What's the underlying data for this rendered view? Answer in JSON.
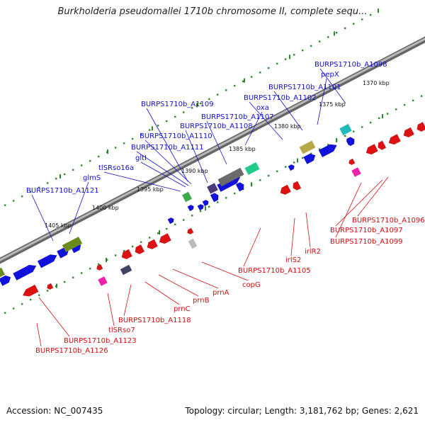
{
  "title": "Burkholderia pseudomallei 1710b chromosome II, complete sequ...",
  "footer": {
    "accession_label": "Accession: NC_007435",
    "stats_label": "Topology: circular; Length: 3,181,762 bp; Genes: 2,621"
  },
  "colors": {
    "forward": "#1111dd",
    "reverse": "#dd1111",
    "label_forward": "#1010c8",
    "label_reverse": "#d01010",
    "ruler": "#2a8a2a",
    "backbone": "#7a7a7a"
  },
  "ticks": [
    {
      "text": "1370 kbp"
    },
    {
      "text": "1375 kbp"
    },
    {
      "text": "1380 kbp"
    },
    {
      "text": "1385 kbp"
    },
    {
      "text": "1390 kbp"
    },
    {
      "text": "1395 kbp"
    },
    {
      "text": "1400 kbp"
    },
    {
      "text": "1405 kbp"
    }
  ],
  "forward_labels": [
    {
      "text": "BURPS1710b_A1098"
    },
    {
      "text": "pepX"
    },
    {
      "text": "BURPS1710b_A1101"
    },
    {
      "text": "BURPS1710b_A1102"
    },
    {
      "text": "oxa"
    },
    {
      "text": "BURPS1710b_A1107"
    },
    {
      "text": "BURPS1710b_A1108"
    },
    {
      "text": "BURPS1710b_A1109"
    },
    {
      "text": "BURPS1710b_A1110"
    },
    {
      "text": "BURPS1710b_A1111"
    },
    {
      "text": "gltI"
    },
    {
      "text": "tlSRso16a"
    },
    {
      "text": "glmS"
    },
    {
      "text": "BURPS1710b_A1121"
    }
  ],
  "reverse_labels": [
    {
      "text": "BURPS1710b_A1096"
    },
    {
      "text": "BURPS1710b_A1097"
    },
    {
      "text": "BURPS1710b_A1099"
    },
    {
      "text": "irlR2"
    },
    {
      "text": "irlS2"
    },
    {
      "text": "BURPS1710b_A1105"
    },
    {
      "text": "copG"
    },
    {
      "text": "prnA"
    },
    {
      "text": "prnB"
    },
    {
      "text": "prnC"
    },
    {
      "text": "BURPS1710b_A1118"
    },
    {
      "text": "tlSRso7"
    },
    {
      "text": "BURPS1710b_A1123"
    },
    {
      "text": "BURPS1710b_A1126"
    }
  ]
}
